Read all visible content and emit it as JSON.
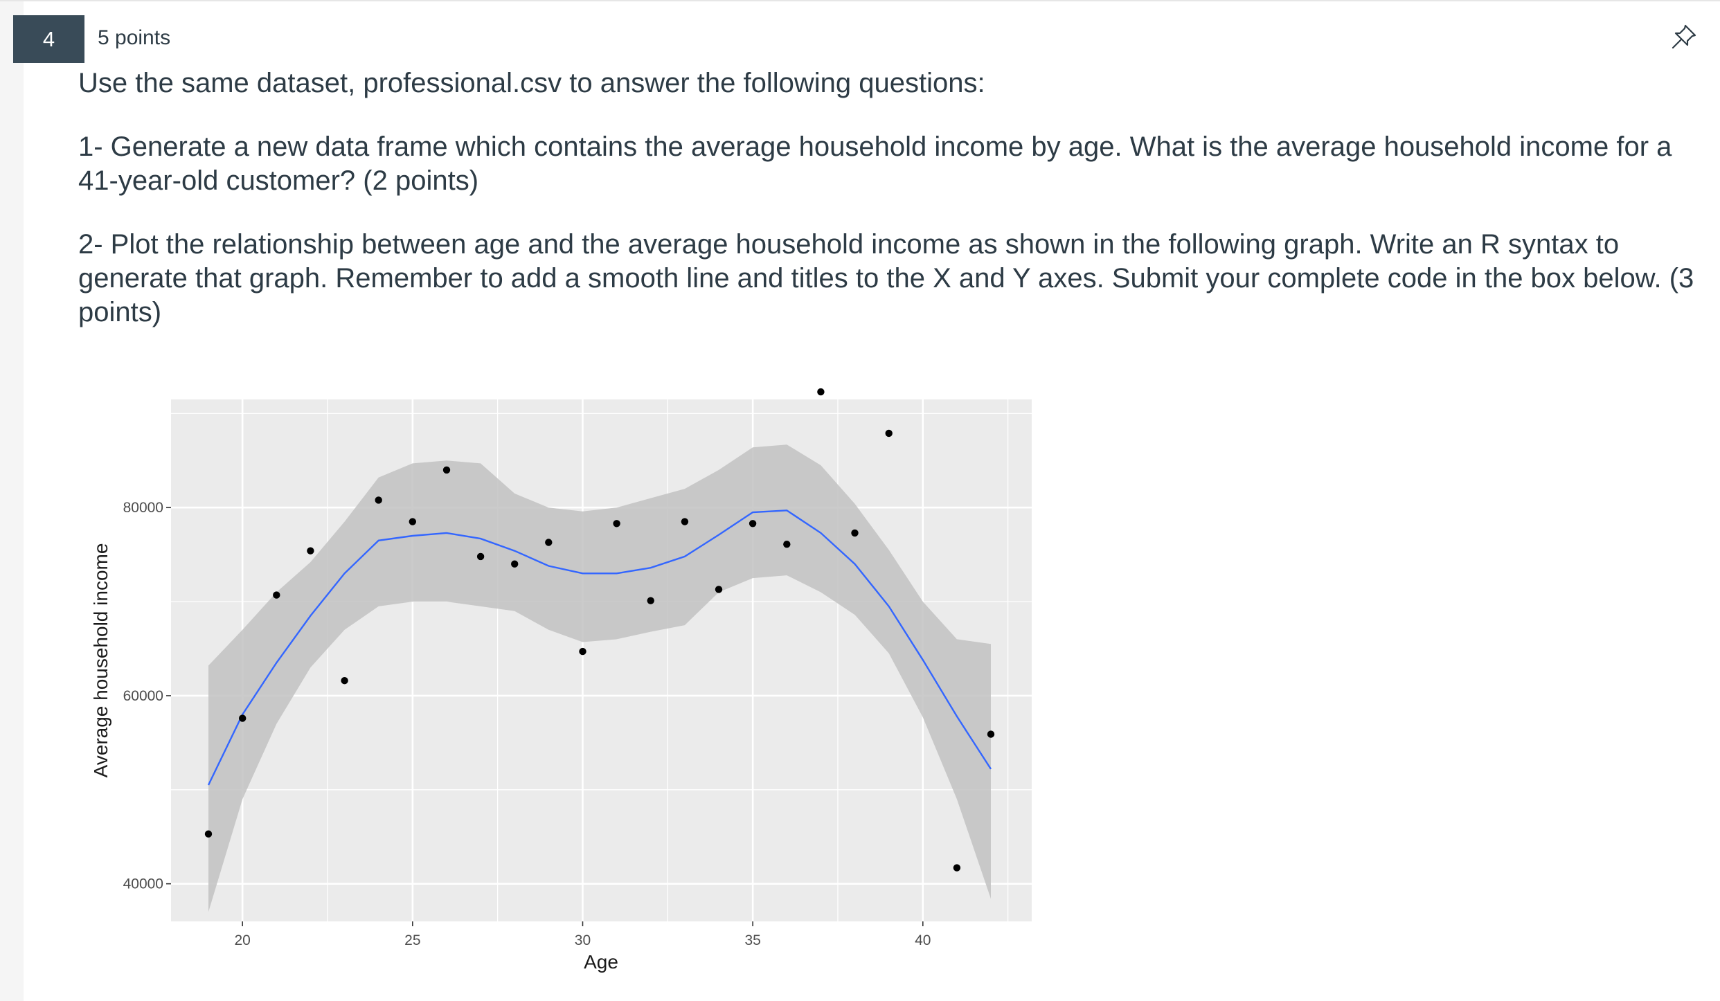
{
  "question": {
    "number": "4",
    "points_label": "5 points",
    "pin_icon": "pin-icon",
    "intro": "Use the same dataset, professional.csv to answer the following questions:",
    "part1": "1- Generate a new data frame which contains the average household income by age. What is the average household income for a 41-year-old customer? (2 points)",
    "part2": "2- Plot the relationship between age and the average household income as shown in the following graph. Write an R syntax to generate that graph. Remember to add a smooth line and titles to the X and Y axes. Submit your complete code in the box below. (3 points)"
  },
  "chart_data": {
    "type": "scatter",
    "title": "",
    "xlabel": "Age",
    "ylabel": "Average household income",
    "xlim": [
      17.9,
      43.2
    ],
    "ylim": [
      36000,
      91500
    ],
    "x_ticks": [
      20,
      25,
      30,
      35,
      40
    ],
    "y_ticks": [
      40000,
      60000,
      80000
    ],
    "grid": true,
    "colors": {
      "panel": "#ebebeb",
      "grid": "#ffffff",
      "point": "#000000",
      "line": "#3366ff",
      "ribbon": "#c2c2c2"
    },
    "points": [
      {
        "x": 19,
        "y": 45300
      },
      {
        "x": 20,
        "y": 57600
      },
      {
        "x": 21,
        "y": 70700
      },
      {
        "x": 22,
        "y": 75400
      },
      {
        "x": 23,
        "y": 61600
      },
      {
        "x": 24,
        "y": 80800
      },
      {
        "x": 25,
        "y": 78500
      },
      {
        "x": 26,
        "y": 84000
      },
      {
        "x": 27,
        "y": 74800
      },
      {
        "x": 28,
        "y": 74000
      },
      {
        "x": 29,
        "y": 76300
      },
      {
        "x": 30,
        "y": 64700
      },
      {
        "x": 31,
        "y": 78300
      },
      {
        "x": 32,
        "y": 70100
      },
      {
        "x": 33,
        "y": 78500
      },
      {
        "x": 34,
        "y": 71300
      },
      {
        "x": 35,
        "y": 78300
      },
      {
        "x": 36,
        "y": 76100
      },
      {
        "x": 37,
        "y": 92300
      },
      {
        "x": 38,
        "y": 77300
      },
      {
        "x": 39,
        "y": 87900
      },
      {
        "x": 41,
        "y": 41700
      },
      {
        "x": 42,
        "y": 55900
      }
    ],
    "smooth": {
      "x": [
        19,
        20,
        21,
        22,
        23,
        24,
        25,
        26,
        27,
        28,
        29,
        30,
        31,
        32,
        33,
        34,
        35,
        36,
        37,
        38,
        39,
        40,
        41,
        42
      ],
      "y": [
        50500,
        58000,
        63500,
        68500,
        73000,
        76500,
        77000,
        77300,
        76700,
        75400,
        73800,
        73000,
        73000,
        73600,
        74800,
        77100,
        79500,
        79700,
        77300,
        74000,
        69500,
        63800,
        57800,
        52200
      ],
      "lo": [
        37000,
        49000,
        57000,
        63000,
        67000,
        69500,
        70000,
        70000,
        69500,
        69000,
        67000,
        65700,
        66000,
        66800,
        67500,
        71000,
        72500,
        72800,
        71000,
        68600,
        64500,
        57700,
        49000,
        38400
      ],
      "hi": [
        63200,
        67000,
        71000,
        74200,
        78500,
        83200,
        84700,
        85000,
        84700,
        81500,
        80000,
        79600,
        80000,
        81000,
        82000,
        84000,
        86400,
        86700,
        84500,
        80400,
        75500,
        70000,
        66000,
        65500
      ]
    }
  }
}
